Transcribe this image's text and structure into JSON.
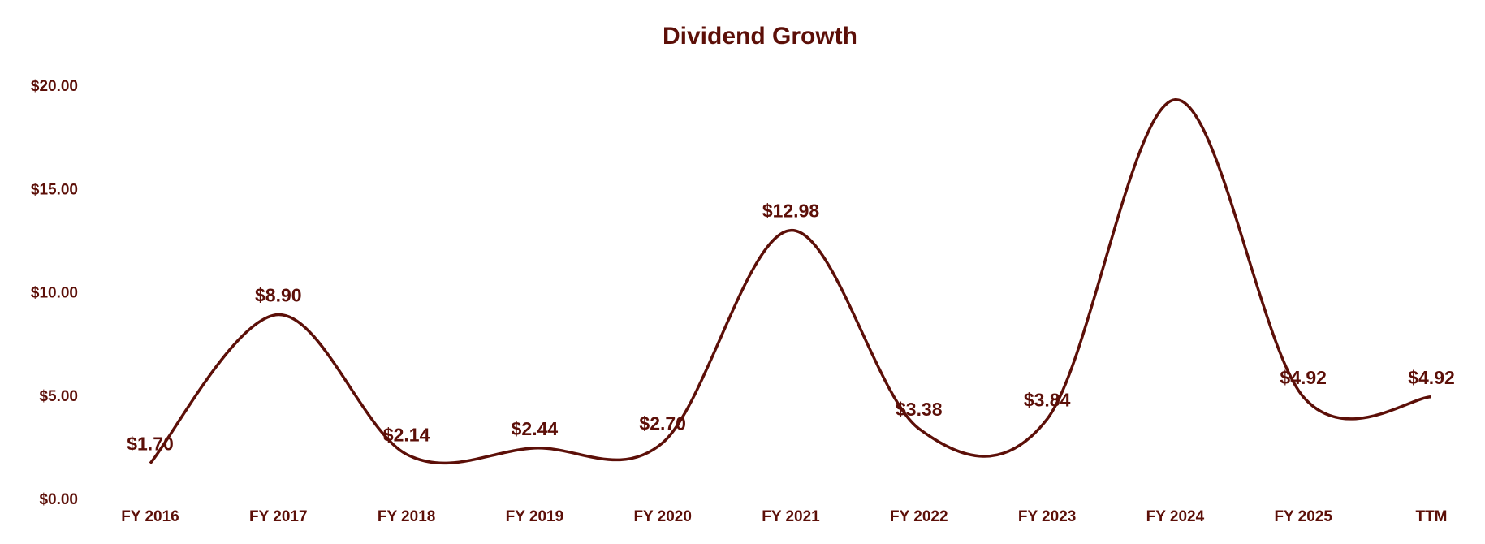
{
  "chart_data": {
    "type": "line",
    "title": "Dividend Growth",
    "categories": [
      "FY 2016",
      "FY 2017",
      "FY 2018",
      "FY 2019",
      "FY 2020",
      "FY 2021",
      "FY 2022",
      "FY 2023",
      "FY 2024",
      "FY 2025",
      "TTM"
    ],
    "series": [
      {
        "values": [
          1.7,
          8.9,
          2.14,
          2.44,
          2.7,
          12.98,
          3.38,
          3.84,
          19.3,
          4.92,
          4.92
        ],
        "data_labels": [
          "$1.70",
          "$8.90",
          "$2.14",
          "$2.44",
          "$2.70",
          "$12.98",
          "$3.38",
          "$3.84",
          "",
          "$4.92",
          "$4.92"
        ]
      }
    ],
    "ylim": [
      0,
      20
    ],
    "yticks": [
      "$0.00",
      "$5.00",
      "$10.00",
      "$15.00",
      "$20.00"
    ],
    "xlabel": "",
    "ylabel": "",
    "grid": false,
    "smooth": true,
    "colors": {
      "line": "#5c0f08",
      "text": "#5c0f08"
    }
  }
}
